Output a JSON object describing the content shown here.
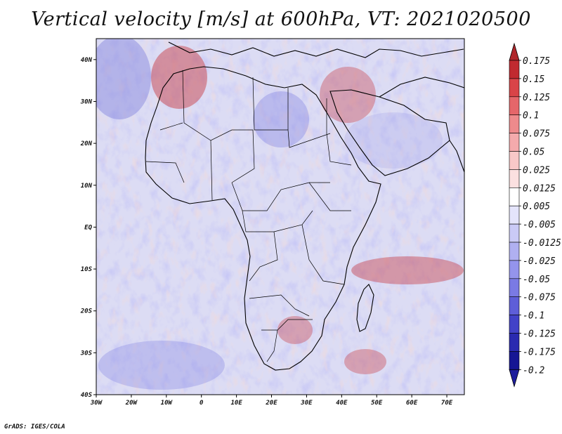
{
  "title": "Vertical velocity [m/s] at 600hPa, VT: 2021020500",
  "footer": "GrADS: IGES/COLA",
  "map": {
    "variable": "Vertical velocity",
    "units": "m/s",
    "level": "600hPa",
    "valid_time": "2021020500",
    "lon_range": [
      -30,
      75
    ],
    "lat_range": [
      -40,
      45
    ],
    "x_ticks": [
      {
        "lon": -30,
        "label": "30W"
      },
      {
        "lon": -20,
        "label": "20W"
      },
      {
        "lon": -10,
        "label": "10W"
      },
      {
        "lon": 0,
        "label": "0"
      },
      {
        "lon": 10,
        "label": "10E"
      },
      {
        "lon": 20,
        "label": "20E"
      },
      {
        "lon": 30,
        "label": "30E"
      },
      {
        "lon": 40,
        "label": "40E"
      },
      {
        "lon": 50,
        "label": "50E"
      },
      {
        "lon": 60,
        "label": "60E"
      },
      {
        "lon": 70,
        "label": "70E"
      }
    ],
    "y_ticks": [
      {
        "lat": 40,
        "label": "40N"
      },
      {
        "lat": 30,
        "label": "30N"
      },
      {
        "lat": 20,
        "label": "20N"
      },
      {
        "lat": 10,
        "label": "10N"
      },
      {
        "lat": 0,
        "label": "EQ"
      },
      {
        "lat": -10,
        "label": "10S"
      },
      {
        "lat": -20,
        "label": "20S"
      },
      {
        "lat": -30,
        "label": "30S"
      },
      {
        "lat": -40,
        "label": "40S"
      }
    ]
  },
  "colorbar": {
    "bins": [
      {
        "label": "0.175",
        "color": "#a11820"
      },
      {
        "label": "0.15",
        "color": "#c12a30"
      },
      {
        "label": "0.125",
        "color": "#d94448"
      },
      {
        "label": "0.1",
        "color": "#e5666a"
      },
      {
        "label": "0.075",
        "color": "#ee8a8c"
      },
      {
        "label": "0.05",
        "color": "#f4aaac"
      },
      {
        "label": "0.025",
        "color": "#f8c8c8"
      },
      {
        "label": "0.0125",
        "color": "#fbe0e0"
      },
      {
        "label": "0.005",
        "color": "#ffffff"
      },
      {
        "label": "-0.005",
        "color": "#e4e4fb"
      },
      {
        "label": "-0.0125",
        "color": "#cacaf6"
      },
      {
        "label": "-0.025",
        "color": "#b0b0f1"
      },
      {
        "label": "-0.05",
        "color": "#9494ec"
      },
      {
        "label": "-0.075",
        "color": "#7a7ae4"
      },
      {
        "label": "-0.1",
        "color": "#5e5ed8"
      },
      {
        "label": "-0.125",
        "color": "#4242c8"
      },
      {
        "label": "-0.175",
        "color": "#2a2ab0"
      },
      {
        "label": "-0.2",
        "color": "#161694"
      }
    ],
    "top_color": "#b0262a",
    "bottom_color": "#1e1e9c"
  }
}
